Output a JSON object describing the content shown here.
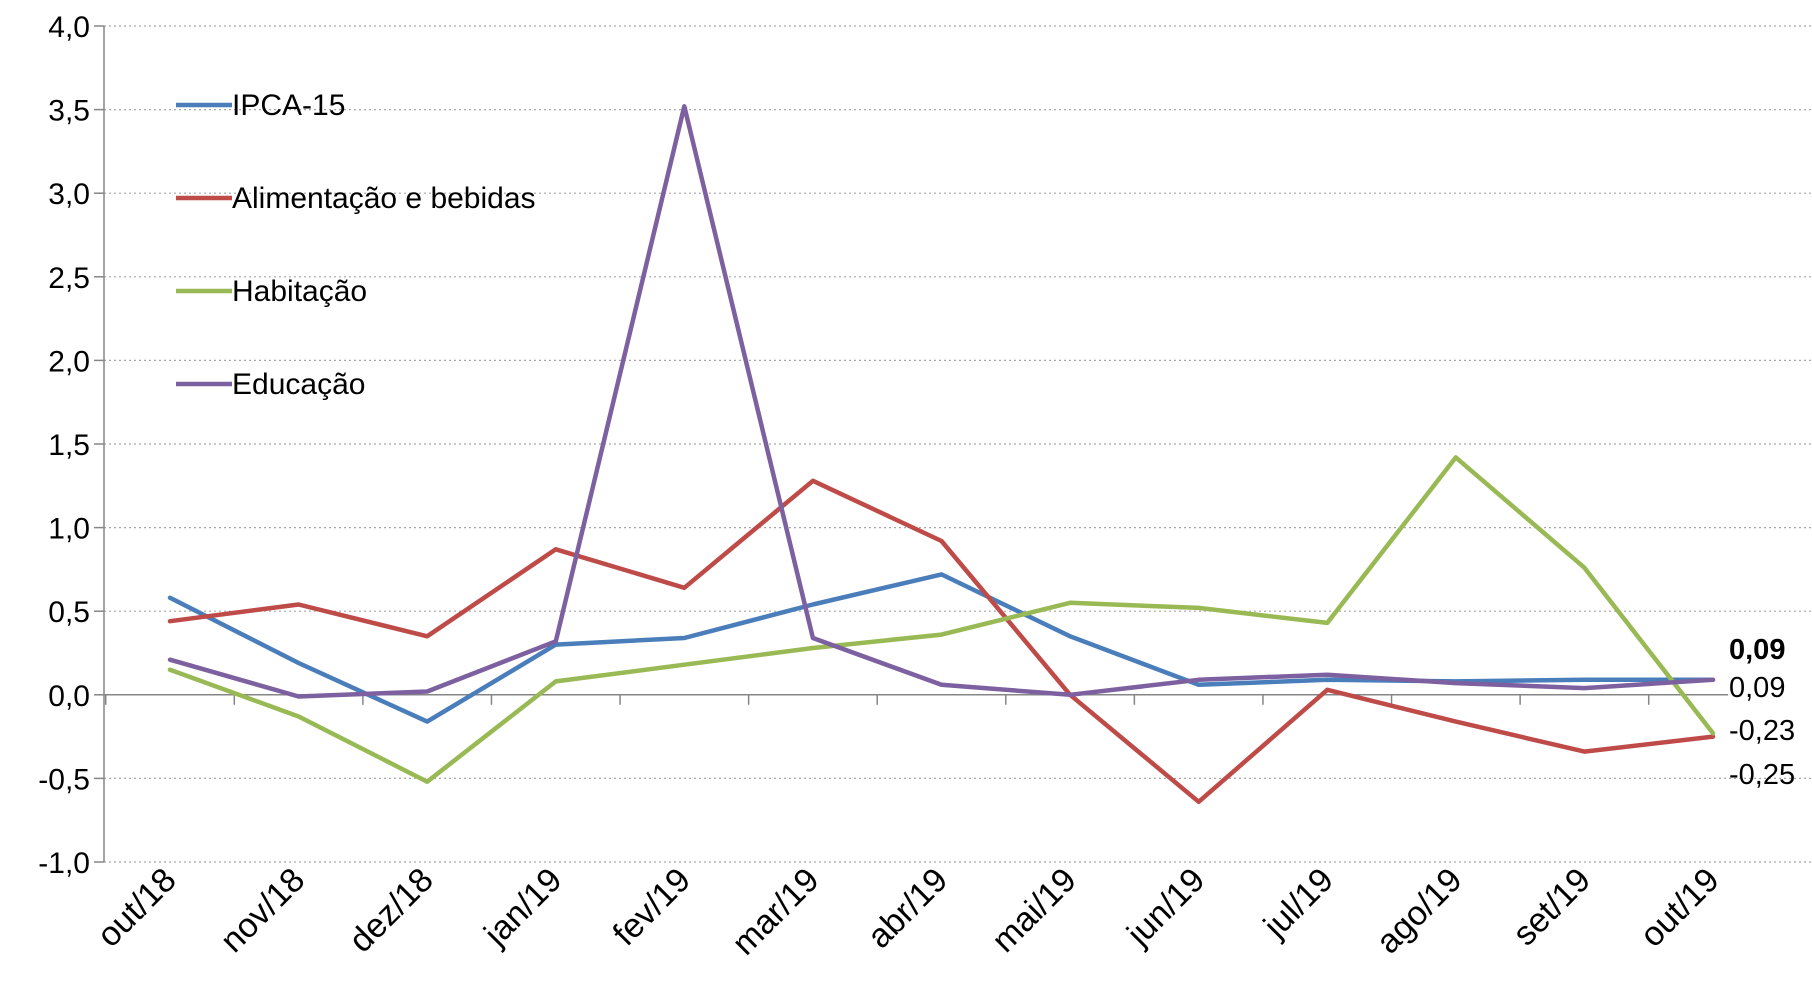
{
  "chart_data": {
    "type": "line",
    "title": "",
    "xlabel": "",
    "ylabel": "",
    "categories": [
      "out/18",
      "nov/18",
      "dez/18",
      "jan/19",
      "fev/19",
      "mar/19",
      "abr/19",
      "mai/19",
      "jun/19",
      "jul/19",
      "ago/19",
      "set/19",
      "out/19"
    ],
    "ylim": [
      -1.0,
      4.0
    ],
    "yticks": [
      -1.0,
      -0.5,
      0.0,
      0.5,
      1.0,
      1.5,
      2.0,
      2.5,
      3.0,
      3.5,
      4.0
    ],
    "ytick_labels": [
      "-1,0",
      "-0,5",
      "0,0",
      "0,5",
      "1,0",
      "1,5",
      "2,0",
      "2,5",
      "3,0",
      "3,5",
      "4,0"
    ],
    "grid": true,
    "legend_position": "top-left",
    "series": [
      {
        "name": "IPCA-15",
        "color": "#4a7ebb",
        "values": [
          0.58,
          0.19,
          -0.16,
          0.3,
          0.34,
          0.54,
          0.72,
          0.35,
          0.06,
          0.09,
          0.08,
          0.09,
          0.09
        ]
      },
      {
        "name": "Alimentação e bebidas",
        "color": "#be4b48",
        "values": [
          0.44,
          0.54,
          0.35,
          0.87,
          0.64,
          1.28,
          0.92,
          0.0,
          -0.64,
          0.03,
          -0.16,
          -0.34,
          -0.25
        ]
      },
      {
        "name": "Habitação",
        "color": "#98b954",
        "values": [
          0.15,
          -0.13,
          -0.52,
          0.08,
          0.18,
          0.28,
          0.36,
          0.55,
          0.52,
          0.43,
          1.42,
          0.76,
          -0.23
        ]
      },
      {
        "name": "Educação",
        "color": "#7d60a0",
        "values": [
          0.21,
          -0.01,
          0.02,
          0.32,
          3.52,
          0.34,
          0.06,
          0.0,
          0.09,
          0.12,
          0.07,
          0.04,
          0.09
        ]
      }
    ],
    "end_labels": [
      {
        "text": "0,09",
        "bold": true,
        "value": 0.09
      },
      {
        "text": "0,09",
        "bold": false,
        "value": 0.09
      },
      {
        "text": "-0,23",
        "bold": false,
        "value": -0.23
      },
      {
        "text": "-0,25",
        "bold": false,
        "value": -0.25
      }
    ]
  }
}
